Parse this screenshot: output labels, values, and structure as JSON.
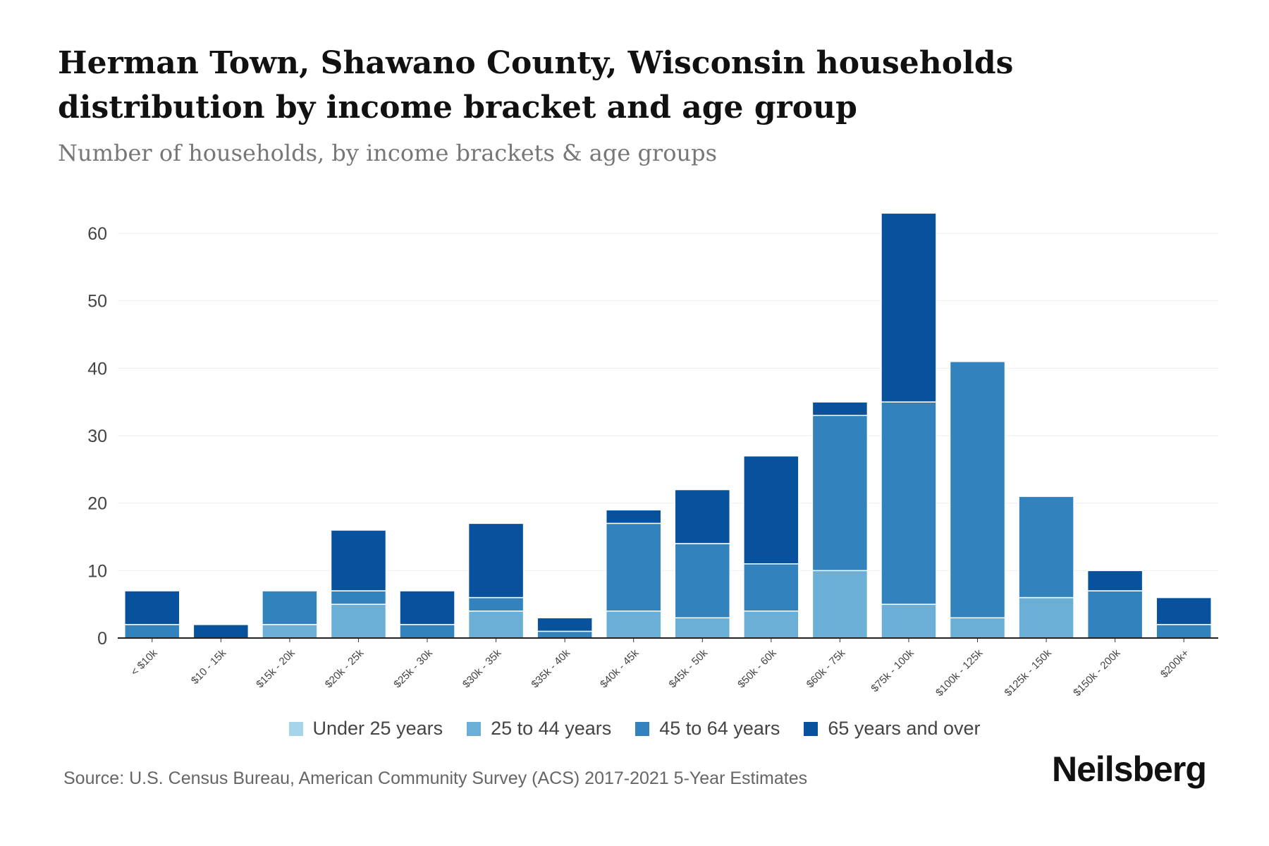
{
  "header": {
    "title": "Herman Town, Shawano County, Wisconsin households distribution by income bracket and age group",
    "subtitle": "Number of households, by income brackets & age groups"
  },
  "footer": {
    "source": "Source: U.S. Census Bureau, American Community Survey (ACS) 2017-2021 5-Year Estimates",
    "logo": "Neilsberg"
  },
  "chart_data": {
    "type": "bar",
    "stacked": true,
    "title": "Herman Town, Shawano County, Wisconsin households distribution by income bracket and age group",
    "xlabel": "",
    "ylabel": "",
    "ylim": [
      0,
      65
    ],
    "yticks": [
      0,
      10,
      20,
      30,
      40,
      50,
      60
    ],
    "grid": true,
    "legend_position": "bottom",
    "categories": [
      "< $10k",
      "$10 - 15k",
      "$15k - 20k",
      "$20k - 25k",
      "$25k - 30k",
      "$30k - 35k",
      "$35k - 40k",
      "$40k - 45k",
      "$45k - 50k",
      "$50k - 60k",
      "$60k - 75k",
      "$75k - 100k",
      "$100k - 125k",
      "$125k - 150k",
      "$150k - 200k",
      "$200k+"
    ],
    "series": [
      {
        "name": "Under 25 years",
        "color": "#a6d4e8",
        "values": [
          0,
          0,
          0,
          0,
          0,
          0,
          0,
          0,
          0,
          0,
          0,
          0,
          0,
          0,
          0,
          0
        ]
      },
      {
        "name": "25 to 44 years",
        "color": "#6baed6",
        "values": [
          0,
          0,
          2,
          5,
          0,
          4,
          0,
          4,
          3,
          4,
          10,
          5,
          3,
          6,
          0,
          0
        ]
      },
      {
        "name": "45 to 64 years",
        "color": "#3182bd",
        "values": [
          2,
          0,
          5,
          2,
          2,
          2,
          1,
          13,
          11,
          7,
          23,
          30,
          38,
          15,
          7,
          2
        ]
      },
      {
        "name": "65 years and over",
        "color": "#08519c",
        "values": [
          5,
          2,
          0,
          9,
          5,
          11,
          2,
          2,
          8,
          16,
          2,
          28,
          0,
          0,
          3,
          4
        ]
      }
    ]
  }
}
